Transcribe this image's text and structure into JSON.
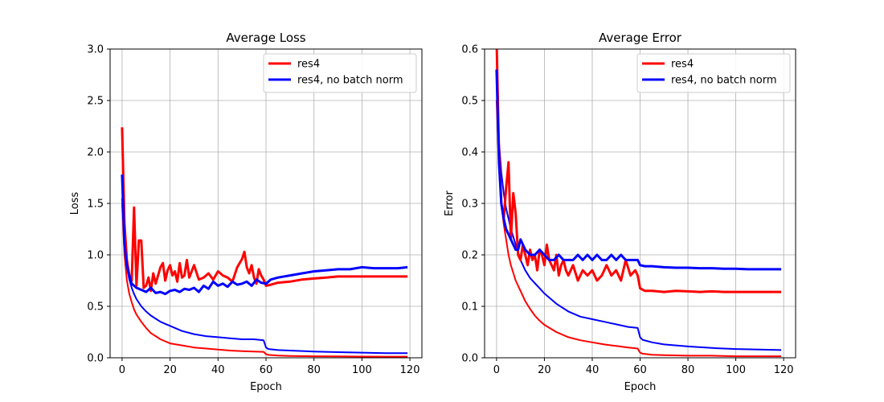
{
  "chart_data": [
    {
      "type": "line",
      "title": "Average Loss",
      "xlabel": "Epoch",
      "ylabel": "Loss",
      "xlim": [
        -5,
        125
      ],
      "ylim": [
        0,
        3.0
      ],
      "xticks": [
        0,
        20,
        40,
        60,
        80,
        100,
        120
      ],
      "xtick_labels": [
        "0",
        "20",
        "40",
        "60",
        "80",
        "100",
        "120"
      ],
      "yticks": [
        0,
        0.5,
        1.0,
        1.5,
        2.0,
        2.5,
        3.0
      ],
      "ytick_labels": [
        "0.0",
        "0.5",
        "1.0",
        "1.5",
        "2.0",
        "2.5",
        "3.0"
      ],
      "grid": true,
      "legend": {
        "placement": "top-right",
        "entries": [
          {
            "label": "res4",
            "color": "#ff0000"
          },
          {
            "label": "res4, no batch norm",
            "color": "#0000ff"
          }
        ]
      },
      "series": [
        {
          "name": "res4",
          "role": "validation",
          "color": "#ff0000",
          "x": [
            0,
            1,
            2,
            3,
            4,
            5,
            6,
            7,
            8,
            9,
            10,
            11,
            12,
            13,
            14,
            15,
            16,
            17,
            18,
            19,
            20,
            21,
            22,
            23,
            24,
            25,
            26,
            27,
            28,
            29,
            30,
            32,
            34,
            36,
            38,
            40,
            42,
            44,
            46,
            48,
            50,
            51,
            52,
            53,
            54,
            55,
            56,
            57,
            58,
            59,
            60,
            62,
            65,
            70,
            75,
            80,
            85,
            90,
            100,
            110,
            119
          ],
          "y": [
            2.24,
            1.3,
            0.95,
            0.8,
            0.75,
            1.46,
            0.7,
            1.14,
            1.14,
            0.68,
            0.7,
            0.78,
            0.65,
            0.82,
            0.72,
            0.8,
            0.88,
            0.92,
            0.75,
            0.85,
            0.9,
            0.8,
            0.84,
            0.74,
            0.92,
            0.78,
            0.8,
            0.95,
            0.78,
            0.84,
            0.9,
            0.76,
            0.78,
            0.82,
            0.76,
            0.84,
            0.8,
            0.78,
            0.74,
            0.88,
            0.96,
            1.03,
            0.88,
            0.82,
            0.9,
            0.78,
            0.72,
            0.86,
            0.8,
            0.76,
            0.7,
            0.71,
            0.73,
            0.74,
            0.76,
            0.77,
            0.78,
            0.79,
            0.79,
            0.79,
            0.79
          ]
        },
        {
          "name": "res4, no batch norm",
          "role": "validation",
          "color": "#0000ff",
          "x": [
            0,
            1,
            2,
            3,
            4,
            5,
            6,
            7,
            8,
            9,
            10,
            12,
            14,
            16,
            18,
            20,
            22,
            24,
            26,
            28,
            30,
            32,
            34,
            36,
            38,
            40,
            42,
            44,
            46,
            48,
            50,
            52,
            54,
            56,
            58,
            60,
            62,
            65,
            70,
            75,
            80,
            85,
            90,
            95,
            100,
            105,
            110,
            115,
            119
          ],
          "y": [
            1.78,
            1.1,
            0.9,
            0.8,
            0.72,
            0.7,
            0.68,
            0.67,
            0.66,
            0.65,
            0.64,
            0.68,
            0.63,
            0.64,
            0.62,
            0.65,
            0.66,
            0.64,
            0.67,
            0.66,
            0.68,
            0.64,
            0.7,
            0.67,
            0.74,
            0.7,
            0.72,
            0.69,
            0.74,
            0.71,
            0.72,
            0.74,
            0.7,
            0.76,
            0.73,
            0.72,
            0.76,
            0.78,
            0.8,
            0.82,
            0.84,
            0.85,
            0.86,
            0.86,
            0.88,
            0.87,
            0.87,
            0.87,
            0.88
          ]
        },
        {
          "name": "res4",
          "role": "training",
          "color": "#ff0000",
          "x": [
            0,
            1,
            2,
            3,
            4,
            5,
            6,
            8,
            10,
            12,
            14,
            16,
            18,
            20,
            25,
            30,
            35,
            40,
            45,
            50,
            55,
            59,
            60,
            61,
            65,
            70,
            80,
            90,
            100,
            110,
            119
          ],
          "y": [
            1.5,
            1.0,
            0.75,
            0.62,
            0.54,
            0.47,
            0.42,
            0.35,
            0.29,
            0.24,
            0.21,
            0.18,
            0.16,
            0.14,
            0.12,
            0.1,
            0.09,
            0.08,
            0.07,
            0.065,
            0.06,
            0.058,
            0.035,
            0.028,
            0.022,
            0.018,
            0.015,
            0.013,
            0.012,
            0.011,
            0.011
          ]
        },
        {
          "name": "res4, no batch norm",
          "role": "training",
          "color": "#0000ff",
          "x": [
            0,
            1,
            2,
            3,
            4,
            5,
            6,
            8,
            10,
            12,
            14,
            16,
            18,
            20,
            25,
            30,
            35,
            40,
            45,
            50,
            55,
            59,
            60,
            61,
            65,
            70,
            80,
            90,
            100,
            110,
            119
          ],
          "y": [
            1.55,
            1.1,
            0.88,
            0.76,
            0.68,
            0.62,
            0.57,
            0.5,
            0.45,
            0.41,
            0.38,
            0.35,
            0.33,
            0.31,
            0.26,
            0.23,
            0.21,
            0.2,
            0.19,
            0.18,
            0.18,
            0.17,
            0.1,
            0.085,
            0.075,
            0.07,
            0.06,
            0.055,
            0.05,
            0.045,
            0.045
          ]
        }
      ]
    },
    {
      "type": "line",
      "title": "Average Error",
      "xlabel": "Epoch",
      "ylabel": "Error",
      "xlim": [
        -5,
        125
      ],
      "ylim": [
        0,
        0.6
      ],
      "xticks": [
        0,
        20,
        40,
        60,
        80,
        100,
        120
      ],
      "xtick_labels": [
        "0",
        "20",
        "40",
        "60",
        "80",
        "100",
        "120"
      ],
      "yticks": [
        0,
        0.1,
        0.2,
        0.3,
        0.4,
        0.5,
        0.6
      ],
      "ytick_labels": [
        "0.0",
        "0.1",
        "0.2",
        "0.3",
        "0.4",
        "0.5",
        "0.6"
      ],
      "grid": true,
      "legend": {
        "placement": "top-right",
        "entries": [
          {
            "label": "res4",
            "color": "#ff0000"
          },
          {
            "label": "res4, no batch norm",
            "color": "#0000ff"
          }
        ]
      },
      "series": [
        {
          "name": "res4",
          "role": "validation",
          "color": "#ff0000",
          "x": [
            0,
            1,
            2,
            3,
            4,
            5,
            6,
            7,
            8,
            9,
            10,
            11,
            12,
            13,
            14,
            15,
            16,
            17,
            18,
            19,
            20,
            21,
            22,
            23,
            24,
            25,
            26,
            27,
            28,
            29,
            30,
            32,
            34,
            36,
            38,
            40,
            42,
            44,
            46,
            48,
            50,
            52,
            54,
            56,
            58,
            59,
            60,
            62,
            65,
            70,
            75,
            80,
            85,
            90,
            95,
            100,
            105,
            110,
            115,
            119
          ],
          "y": [
            0.62,
            0.4,
            0.3,
            0.27,
            0.33,
            0.38,
            0.23,
            0.32,
            0.28,
            0.2,
            0.19,
            0.22,
            0.2,
            0.18,
            0.21,
            0.19,
            0.2,
            0.17,
            0.21,
            0.2,
            0.18,
            0.22,
            0.19,
            0.18,
            0.17,
            0.2,
            0.16,
            0.18,
            0.19,
            0.17,
            0.16,
            0.18,
            0.15,
            0.17,
            0.16,
            0.17,
            0.15,
            0.16,
            0.18,
            0.16,
            0.17,
            0.15,
            0.19,
            0.16,
            0.17,
            0.16,
            0.135,
            0.13,
            0.13,
            0.128,
            0.13,
            0.129,
            0.128,
            0.129,
            0.128,
            0.128,
            0.128,
            0.128,
            0.128,
            0.128
          ]
        },
        {
          "name": "res4, no batch norm",
          "role": "validation",
          "color": "#0000ff",
          "x": [
            0,
            1,
            2,
            3,
            4,
            5,
            6,
            7,
            8,
            9,
            10,
            12,
            14,
            16,
            18,
            20,
            22,
            24,
            26,
            28,
            30,
            32,
            34,
            36,
            38,
            40,
            42,
            44,
            46,
            48,
            50,
            52,
            54,
            56,
            58,
            59,
            60,
            62,
            65,
            70,
            75,
            80,
            85,
            90,
            95,
            100,
            105,
            110,
            115,
            119
          ],
          "y": [
            0.56,
            0.38,
            0.3,
            0.27,
            0.25,
            0.24,
            0.23,
            0.22,
            0.21,
            0.21,
            0.23,
            0.21,
            0.2,
            0.2,
            0.21,
            0.2,
            0.19,
            0.19,
            0.2,
            0.19,
            0.19,
            0.19,
            0.2,
            0.19,
            0.2,
            0.19,
            0.2,
            0.19,
            0.19,
            0.2,
            0.19,
            0.2,
            0.19,
            0.19,
            0.19,
            0.19,
            0.18,
            0.178,
            0.178,
            0.176,
            0.175,
            0.175,
            0.174,
            0.174,
            0.173,
            0.173,
            0.172,
            0.172,
            0.172,
            0.172
          ]
        },
        {
          "name": "res4",
          "role": "training",
          "color": "#ff0000",
          "x": [
            0,
            1,
            2,
            3,
            4,
            5,
            6,
            8,
            10,
            12,
            14,
            16,
            18,
            20,
            25,
            30,
            35,
            40,
            45,
            50,
            55,
            59,
            60,
            61,
            65,
            70,
            80,
            90,
            100,
            110,
            119
          ],
          "y": [
            0.5,
            0.37,
            0.3,
            0.26,
            0.23,
            0.2,
            0.18,
            0.15,
            0.13,
            0.11,
            0.095,
            0.082,
            0.072,
            0.064,
            0.05,
            0.04,
            0.034,
            0.03,
            0.026,
            0.023,
            0.02,
            0.018,
            0.01,
            0.008,
            0.006,
            0.005,
            0.004,
            0.004,
            0.003,
            0.003,
            0.003
          ]
        },
        {
          "name": "res4, no batch norm",
          "role": "training",
          "color": "#0000ff",
          "x": [
            0,
            1,
            2,
            3,
            4,
            5,
            6,
            8,
            10,
            12,
            14,
            16,
            18,
            20,
            25,
            30,
            35,
            40,
            45,
            50,
            55,
            59,
            60,
            61,
            65,
            70,
            80,
            90,
            100,
            110,
            119
          ],
          "y": [
            0.55,
            0.42,
            0.36,
            0.32,
            0.29,
            0.27,
            0.25,
            0.22,
            0.19,
            0.17,
            0.155,
            0.145,
            0.135,
            0.125,
            0.105,
            0.09,
            0.08,
            0.075,
            0.07,
            0.065,
            0.06,
            0.058,
            0.04,
            0.035,
            0.03,
            0.026,
            0.022,
            0.019,
            0.017,
            0.016,
            0.015
          ]
        }
      ]
    }
  ]
}
